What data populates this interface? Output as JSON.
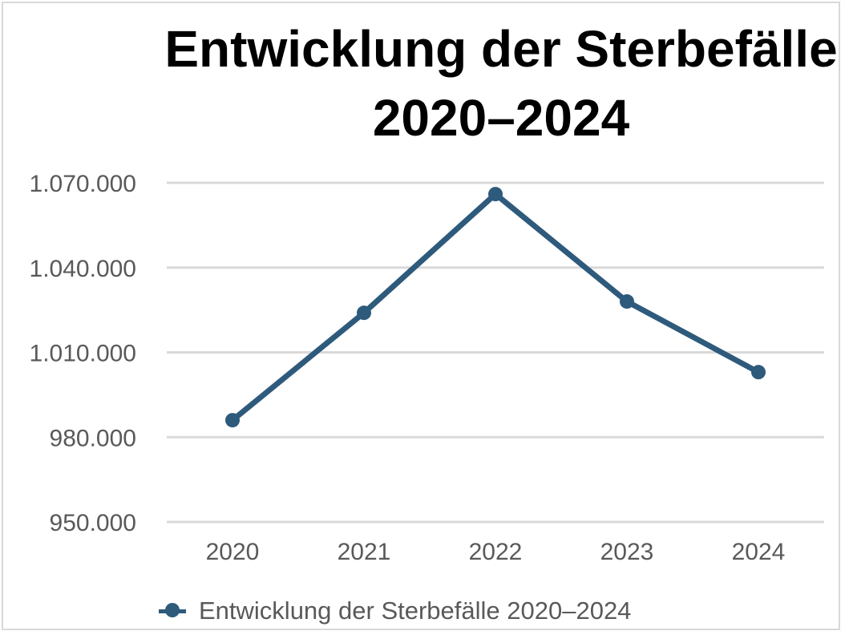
{
  "chart_data": {
    "type": "line",
    "title": "Entwicklung der Sterbefälle 2020–2024",
    "categories": [
      "2020",
      "2021",
      "2022",
      "2023",
      "2024"
    ],
    "series": [
      {
        "name": "Entwicklung der Sterbefälle 2020–2024",
        "values": [
          986000,
          1024000,
          1066000,
          1028000,
          1003000
        ],
        "color": "#2e5a7c"
      }
    ],
    "ylim": [
      950000,
      1070000
    ],
    "yticks": [
      950000,
      980000,
      1010000,
      1040000,
      1070000
    ],
    "ytick_labels": [
      "950.000",
      "980.000",
      "1.010.000",
      "1.040.000",
      "1.070.000"
    ],
    "grid": true,
    "legend_position": "bottom",
    "gridline_color": "#d9d9d9"
  }
}
